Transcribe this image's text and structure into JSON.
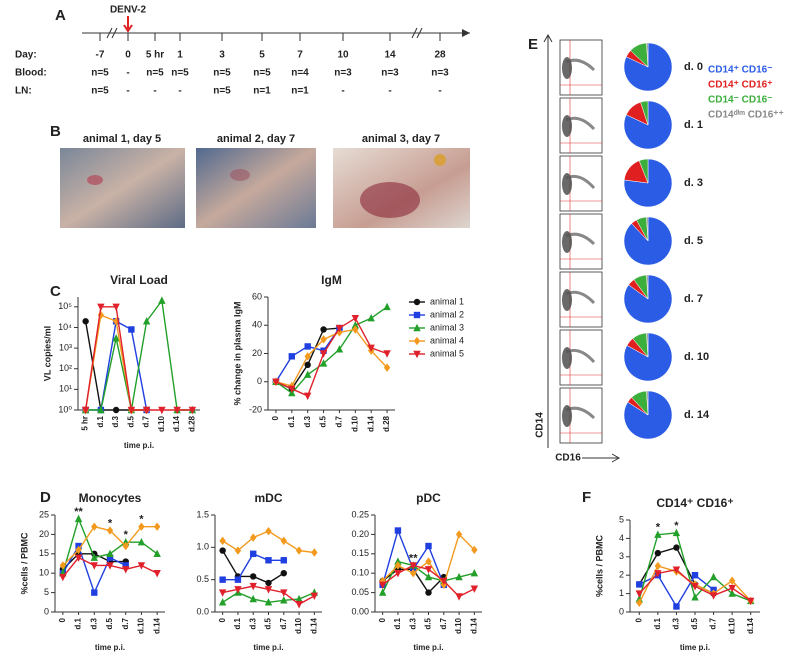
{
  "panels": [
    "A",
    "B",
    "C",
    "D",
    "E",
    "F"
  ],
  "timeline": {
    "marker_label": "DENV-2",
    "rows": [
      {
        "label": "Day:",
        "cells": [
          "-7",
          "0",
          "5 hr",
          "1",
          "3",
          "5",
          "7",
          "10",
          "14",
          "28"
        ]
      },
      {
        "label": "Blood:",
        "cells": [
          "n=5",
          "-",
          "n=5",
          "n=5",
          "n=5",
          "n=5",
          "n=4",
          "n=3",
          "n=3",
          "n=3"
        ]
      },
      {
        "label": "LN:",
        "cells": [
          "n=5",
          "-",
          "-",
          "-",
          "n=5",
          "n=1",
          "n=1",
          "-",
          "-",
          "-"
        ]
      }
    ]
  },
  "photo_captions": [
    "animal 1, day 5",
    "animal 2, day 7",
    "animal 3, day 7"
  ],
  "chart_data": [
    {
      "type": "line",
      "title": "Viral Load",
      "y_label": "VL copies/ml",
      "x_label": "time p.i.",
      "log_y": true,
      "categories": [
        "5 hr",
        "d.1",
        "d.3",
        "d.5",
        "d.7",
        "d.10",
        "d.14",
        "d.28"
      ],
      "ylim": [
        1,
        300000
      ],
      "yticks": [
        {
          "value": 1,
          "label": "10⁰"
        },
        {
          "value": 10,
          "label": "10¹"
        },
        {
          "value": 100,
          "label": "10²"
        },
        {
          "value": 1000,
          "label": "10³"
        },
        {
          "value": 10000,
          "label": "10⁴"
        },
        {
          "value": 100000,
          "label": "10⁵"
        }
      ],
      "series": [
        {
          "color": "#111111",
          "marker": "circle",
          "values": [
            20000,
            1,
            1,
            1,
            1,
            null,
            null,
            null
          ]
        },
        {
          "color": "#1f3fe0",
          "marker": "square",
          "values": [
            1,
            1,
            20000,
            8000,
            1,
            null,
            null,
            null
          ]
        },
        {
          "color": "#22a02a",
          "marker": "triangle",
          "values": [
            1,
            1,
            3000,
            1,
            20000,
            200000,
            1,
            1
          ]
        },
        {
          "color": "#f39a1e",
          "marker": "diamond",
          "values": [
            1,
            40000,
            20000,
            1,
            1,
            null,
            null,
            null
          ]
        },
        {
          "color": "#e0202a",
          "marker": "triangle-down",
          "values": [
            1,
            100000,
            100000,
            1,
            1,
            1,
            1,
            1
          ]
        }
      ]
    },
    {
      "type": "line",
      "title": "IgM",
      "y_label": "% change in plasma IgM",
      "categories": [
        "0",
        "d.1",
        "d.3",
        "d.5",
        "d.7",
        "d.10",
        "d.14",
        "d.28"
      ],
      "ylim": [
        -20,
        60
      ],
      "yticks": [
        -20,
        0,
        20,
        40,
        60
      ],
      "legend": "right",
      "series": [
        {
          "name": "animal 1",
          "color": "#111111",
          "marker": "circle",
          "values": [
            0,
            -5,
            12,
            37,
            38,
            null,
            null,
            null
          ]
        },
        {
          "name": "animal 2",
          "color": "#1f3fe0",
          "marker": "square",
          "values": [
            0,
            18,
            25,
            22,
            38,
            null,
            null,
            null
          ]
        },
        {
          "name": "animal 3",
          "color": "#22a02a",
          "marker": "triangle",
          "values": [
            0,
            -8,
            5,
            13,
            23,
            40,
            45,
            53
          ]
        },
        {
          "name": "animal 4",
          "color": "#f39a1e",
          "marker": "diamond",
          "values": [
            0,
            -3,
            18,
            30,
            35,
            37,
            22,
            10
          ]
        },
        {
          "name": "animal 5",
          "color": "#e0202a",
          "marker": "triangle-down",
          "values": [
            0,
            -5,
            -10,
            20,
            38,
            45,
            24,
            20
          ]
        }
      ]
    },
    {
      "type": "line",
      "title": "Monocytes",
      "y_label": "%cells / PBMC",
      "x_label": "time p.i.",
      "categories": [
        "0",
        "d.1",
        "d.3",
        "d.5",
        "d.7",
        "d.10",
        "d.14"
      ],
      "ylim": [
        0,
        25
      ],
      "yticks": [
        0,
        5,
        10,
        15,
        20,
        25
      ],
      "annotations": [
        {
          "text": "**",
          "at": "d.1"
        },
        {
          "text": "*",
          "at": "d.5"
        },
        {
          "text": "*",
          "at": "d.7"
        },
        {
          "text": "*",
          "at": "d.10"
        }
      ],
      "series": [
        {
          "color": "#111111",
          "marker": "circle",
          "values": [
            11,
            15,
            15,
            13,
            13,
            null,
            null
          ]
        },
        {
          "color": "#1f3fe0",
          "marker": "square",
          "values": [
            10,
            17,
            5,
            14,
            12,
            null,
            null
          ]
        },
        {
          "color": "#22a02a",
          "marker": "triangle",
          "values": [
            10,
            24,
            14,
            15,
            18,
            18,
            15
          ]
        },
        {
          "color": "#f39a1e",
          "marker": "diamond",
          "values": [
            12,
            16,
            22,
            21,
            17,
            22,
            22
          ]
        },
        {
          "color": "#e0202a",
          "marker": "triangle-down",
          "values": [
            9,
            14,
            12,
            12,
            11,
            12,
            10
          ]
        }
      ]
    },
    {
      "type": "line",
      "title": "mDC",
      "x_label": "time p.i.",
      "categories": [
        "0",
        "d.1",
        "d.3",
        "d.5",
        "d.7",
        "d.10",
        "d.14"
      ],
      "ylim": [
        0,
        1.5
      ],
      "yticks": [
        {
          "value": 0,
          "label": "0.0"
        },
        0.5,
        {
          "value": 1,
          "label": "1.0"
        },
        1.5
      ],
      "series": [
        {
          "color": "#111111",
          "marker": "circle",
          "values": [
            0.95,
            0.55,
            0.55,
            0.45,
            0.6,
            null,
            null
          ]
        },
        {
          "color": "#1f3fe0",
          "marker": "square",
          "values": [
            0.5,
            0.5,
            0.9,
            0.8,
            0.8,
            null,
            null
          ]
        },
        {
          "color": "#22a02a",
          "marker": "triangle",
          "values": [
            0.15,
            0.3,
            0.2,
            0.15,
            0.18,
            0.2,
            0.3
          ]
        },
        {
          "color": "#f39a1e",
          "marker": "diamond",
          "values": [
            1.1,
            0.95,
            1.15,
            1.25,
            1.1,
            0.95,
            0.92
          ]
        },
        {
          "color": "#e0202a",
          "marker": "triangle-down",
          "values": [
            0.3,
            0.35,
            0.4,
            0.35,
            0.3,
            0.12,
            0.25
          ]
        }
      ]
    },
    {
      "type": "line",
      "title": "pDC",
      "x_label": "time p.i.",
      "categories": [
        "0",
        "d.1",
        "d.3",
        "d.5",
        "d.7",
        "d.10",
        "d.14"
      ],
      "ylim": [
        0,
        0.25
      ],
      "yticks": [
        {
          "value": 0,
          "label": "0.00"
        },
        0.05,
        {
          "value": 0.1,
          "label": "0.10"
        },
        0.15,
        {
          "value": 0.2,
          "label": "0.20"
        },
        0.25
      ],
      "annotations": [
        {
          "text": "**",
          "at": "d.3"
        }
      ],
      "series": [
        {
          "color": "#111111",
          "marker": "circle",
          "values": [
            0.08,
            0.11,
            0.11,
            0.05,
            0.09,
            null,
            null
          ]
        },
        {
          "color": "#1f3fe0",
          "marker": "square",
          "values": [
            0.07,
            0.21,
            0.11,
            0.17,
            0.07,
            null,
            null
          ]
        },
        {
          "color": "#22a02a",
          "marker": "triangle",
          "values": [
            0.05,
            0.13,
            0.12,
            0.09,
            0.08,
            0.09,
            0.1
          ]
        },
        {
          "color": "#f39a1e",
          "marker": "diamond",
          "values": [
            0.08,
            0.12,
            0.1,
            0.13,
            0.07,
            0.2,
            0.16
          ]
        },
        {
          "color": "#e0202a",
          "marker": "triangle-down",
          "values": [
            0.07,
            0.1,
            0.12,
            0.11,
            0.08,
            0.04,
            0.06
          ]
        }
      ]
    },
    {
      "type": "line",
      "title": "CD14⁺ CD16⁺",
      "y_label": "%cells / PBMC",
      "x_label": "time p.i.",
      "categories": [
        "0",
        "d.1",
        "d.3",
        "d.5",
        "d.7",
        "d.10",
        "d.14"
      ],
      "ylim": [
        0,
        5
      ],
      "yticks": [
        0,
        1,
        2,
        3,
        4,
        5
      ],
      "annotations": [
        {
          "text": "*",
          "at": "d.1"
        },
        {
          "text": "*",
          "at": "d.3"
        }
      ],
      "series": [
        {
          "color": "#111111",
          "marker": "circle",
          "values": [
            1.5,
            3.2,
            3.5,
            1.5,
            1,
            null,
            null
          ]
        },
        {
          "color": "#1f3fe0",
          "marker": "square",
          "values": [
            1.5,
            2,
            0.3,
            2,
            1.2,
            null,
            null
          ]
        },
        {
          "color": "#22a02a",
          "marker": "triangle",
          "values": [
            0.7,
            4.2,
            4.3,
            0.8,
            1.9,
            1,
            0.6
          ]
        },
        {
          "color": "#f39a1e",
          "marker": "diamond",
          "values": [
            0.5,
            2.5,
            2.2,
            1.5,
            1,
            1.7,
            0.6
          ]
        },
        {
          "color": "#e0202a",
          "marker": "triangle-down",
          "values": [
            1,
            2.1,
            2.3,
            1.4,
            0.9,
            1.3,
            0.6
          ]
        }
      ]
    },
    {
      "type": "pie",
      "y_label": "CD14",
      "x_label": "CD16",
      "categories": [
        "CD14⁺ CD16⁻",
        "CD14⁺ CD16⁺",
        "CD14⁻ CD16⁻",
        "CD14ᵈⁱᵐ CD16⁺⁺"
      ],
      "colors": [
        "#2b5ce6",
        "#e02020",
        "#3cae3c",
        "#888888"
      ],
      "pies": [
        {
          "label": "d. 0",
          "values": [
            82,
            5,
            12,
            1
          ]
        },
        {
          "label": "d. 1",
          "values": [
            82,
            13,
            5,
            0
          ]
        },
        {
          "label": "d. 3",
          "values": [
            77,
            17,
            6,
            0
          ]
        },
        {
          "label": "d. 5",
          "values": [
            88,
            4,
            7,
            1
          ]
        },
        {
          "label": "d. 7",
          "values": [
            85,
            5,
            9,
            1
          ]
        },
        {
          "label": "d. 10",
          "values": [
            83,
            6,
            10,
            1
          ]
        },
        {
          "label": "d. 14",
          "values": [
            84,
            4,
            11,
            1
          ]
        }
      ]
    }
  ]
}
